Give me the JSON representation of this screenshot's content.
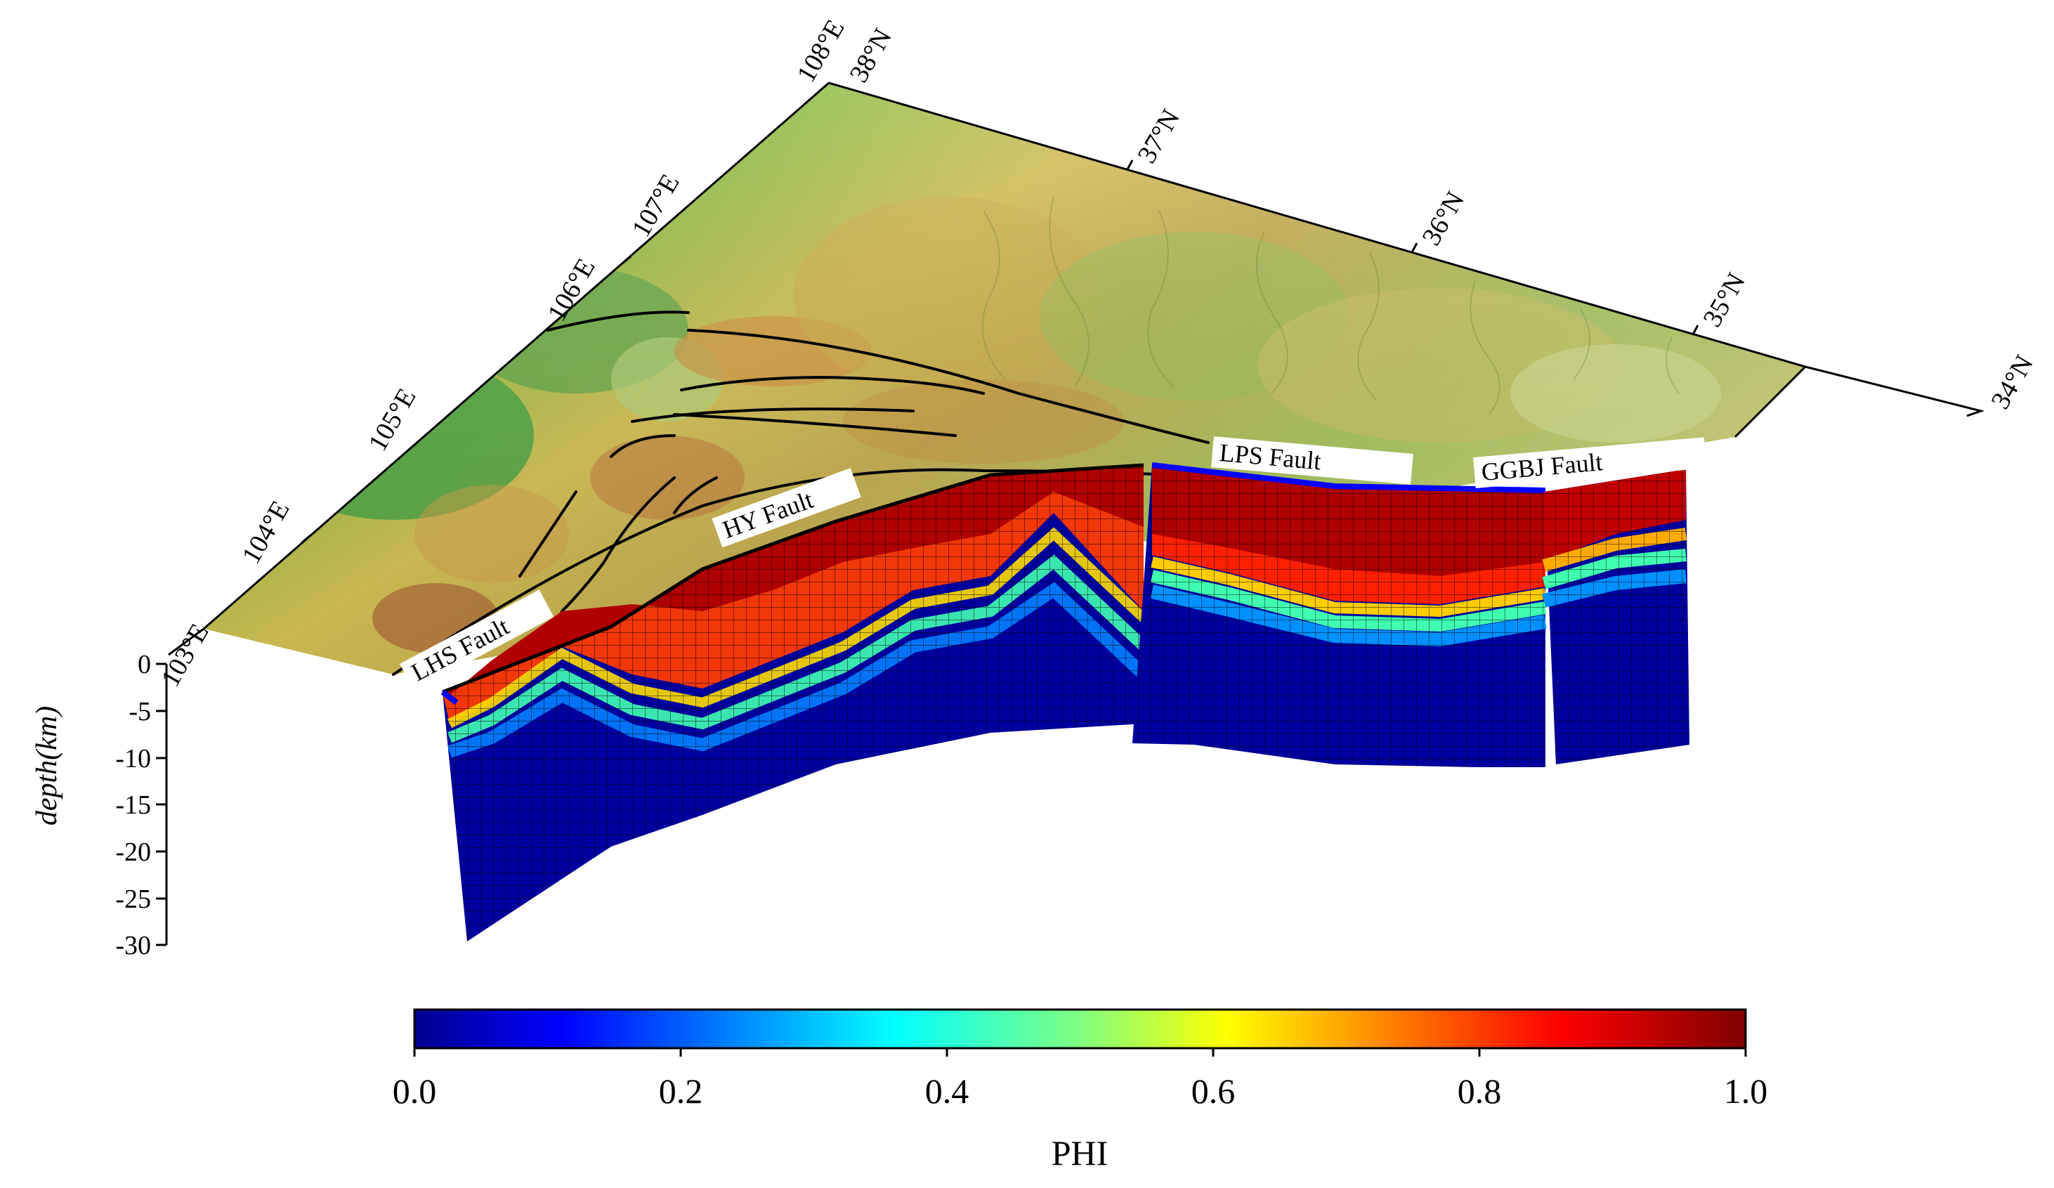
{
  "figure": {
    "lon_labels": [
      "103°E",
      "104°E",
      "105°E",
      "106°E",
      "107°E",
      "108°E"
    ],
    "lat_labels": [
      "38°N",
      "37°N",
      "36°N",
      "35°N",
      "34°N"
    ],
    "depth_axis": {
      "title": "depth(km)",
      "ticks": [
        "0",
        "-5",
        "-10",
        "-15",
        "-20",
        "-25",
        "-30"
      ]
    },
    "faults": [
      {
        "id": "lhs",
        "label": "LHS Fault"
      },
      {
        "id": "hy",
        "label": "HY Fault"
      },
      {
        "id": "lps",
        "label": "LPS Fault"
      },
      {
        "id": "ggbj",
        "label": "GGBJ Fault"
      }
    ],
    "colorbar": {
      "title": "PHI",
      "ticks": [
        "0.0",
        "0.2",
        "0.4",
        "0.6",
        "0.8",
        "1.0"
      ],
      "min": 0.0,
      "max": 1.0,
      "colormap": "jet"
    },
    "colors": {
      "phi_low": "#00008f",
      "phi_high": "#800000",
      "terrain_low": "#2e9a3a",
      "terrain_mid": "#e0c456",
      "terrain_high": "#8a3a22"
    }
  }
}
